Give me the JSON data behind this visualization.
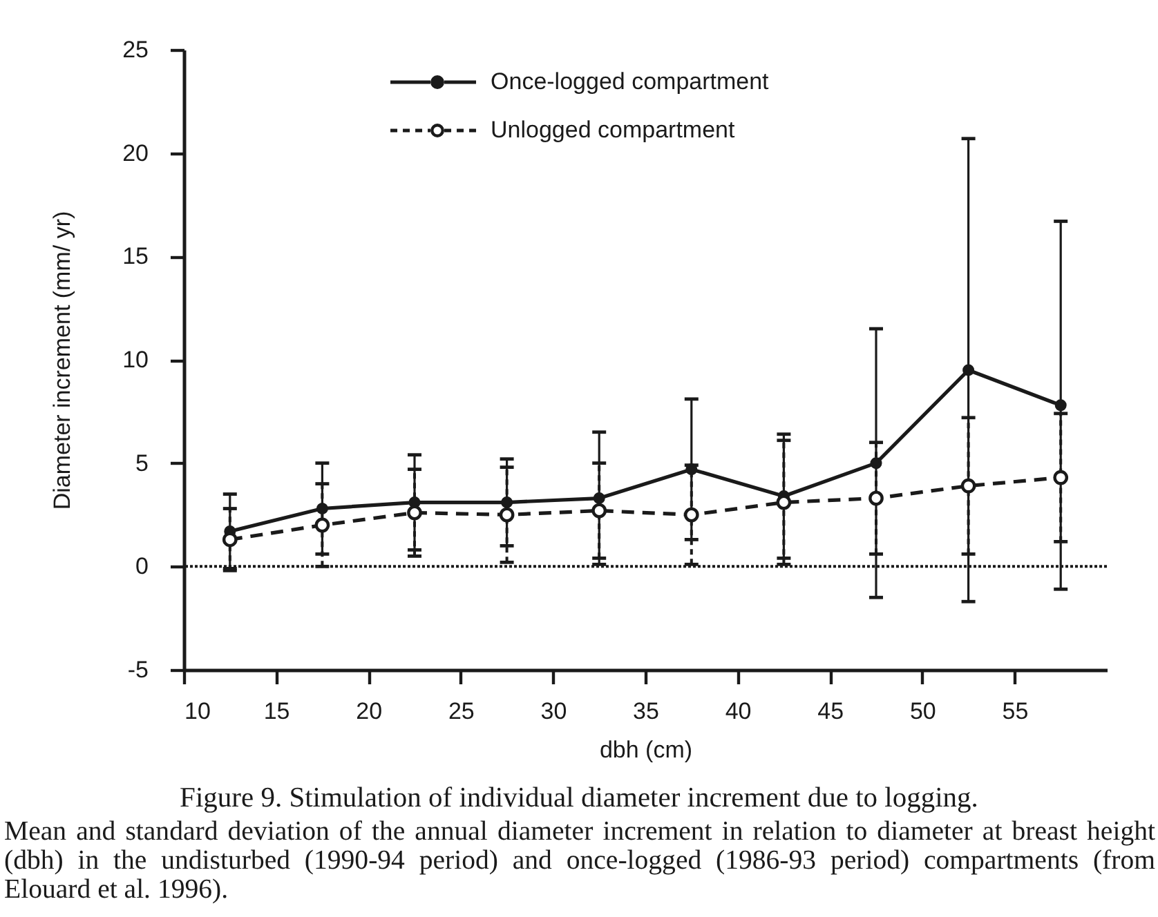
{
  "chart_data": {
    "type": "line",
    "title": "Figure 9. Stimulation of individual diameter increment due to logging.",
    "annotations": [
      "Mean and standard deviation of the annual diameter increment in relation to diameter at breast height (dbh) in the undisturbed (1990-94 period) and once-logged (1986-93 period) compartments (from Elouard et al. 1996)."
    ],
    "xlabel": "dbh (cm)",
    "ylabel": "Diameter increment (mm/ yr)",
    "x": [
      12.5,
      17.5,
      22.5,
      27.5,
      32.5,
      37.5,
      42.5,
      47.5,
      52.5,
      57.5
    ],
    "series": [
      {
        "name": "Once-logged compartment",
        "color": "#1a1a1a",
        "line_style": "solid",
        "values": [
          1.7,
          2.8,
          3.1,
          3.1,
          3.3,
          4.7,
          3.4,
          5.0,
          9.5,
          7.8
        ],
        "errors": [
          1.8,
          2.2,
          2.3,
          2.1,
          3.2,
          3.4,
          3.0,
          6.5,
          11.2,
          8.9
        ]
      },
      {
        "name": "Unlogged compartment",
        "color": "#1a1a1a",
        "line_style": "dashed",
        "values": [
          1.3,
          2.0,
          2.6,
          2.5,
          2.7,
          2.5,
          3.1,
          3.3,
          3.9,
          4.3
        ],
        "errors": [
          1.5,
          2.0,
          2.1,
          2.3,
          2.3,
          2.4,
          3.0,
          2.7,
          3.3,
          3.1
        ]
      }
    ],
    "xlim": [
      10,
      60
    ],
    "xticks": [
      10,
      15,
      20,
      25,
      30,
      35,
      40,
      45,
      50,
      55
    ],
    "ylim": [
      -5,
      25
    ],
    "yticks": [
      -5,
      0,
      5,
      10,
      15,
      20,
      25
    ],
    "ref_lines": [
      {
        "axis": "y",
        "value": 0,
        "line_style": "dotted",
        "color": "#1a1a1a"
      }
    ],
    "marker": "circle",
    "grid": false,
    "legend": "top"
  }
}
